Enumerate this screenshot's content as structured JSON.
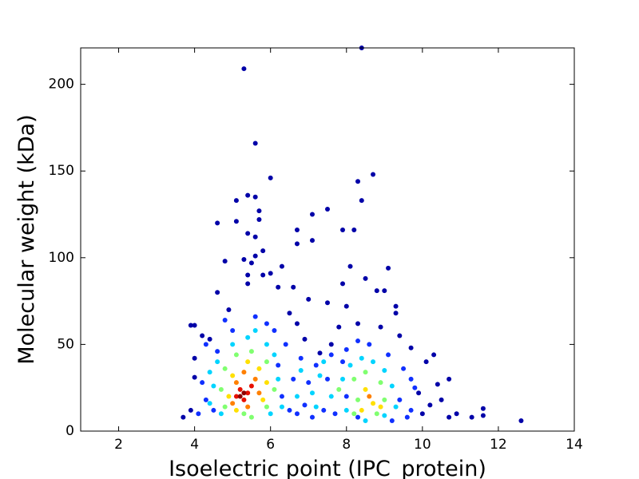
{
  "chart_data": {
    "type": "scatter",
    "x_label": "Isoelectric point (IPC_protein)",
    "y_label": "Molecular weight (kDa)",
    "xlim": [
      1,
      14
    ],
    "xticks": [
      2,
      4,
      6,
      8,
      10,
      12,
      14
    ],
    "ylim": [
      0,
      221
    ],
    "yticks": [
      0,
      50,
      100,
      150,
      200
    ],
    "series": [
      {
        "color": "#0000a8",
        "x": [
          5.3,
          8.4,
          5.6,
          6.0,
          8.7,
          8.3,
          5.4,
          5.6,
          5.1,
          8.4,
          5.7,
          7.5,
          7.1,
          5.1,
          4.6,
          5.7,
          6.7,
          7.9,
          8.2,
          5.4,
          7.1,
          5.6,
          6.7,
          5.8,
          5.6,
          5.3,
          5.5,
          4.8,
          6.3,
          8.1,
          9.1,
          5.4,
          5.8,
          6.0,
          6.2,
          6.6,
          5.4,
          8.5,
          7.9,
          4.6,
          8.8,
          9.0,
          7.0,
          7.5,
          9.3,
          8.0,
          6.5,
          9.3,
          4.9,
          3.9,
          4.0,
          6.7,
          7.8,
          10.3,
          10.1,
          9.7,
          10.4,
          10.7,
          10.9,
          11.3,
          11.6,
          11.6,
          12.6,
          10.7,
          3.7,
          3.9,
          4.0,
          4.0,
          4.2,
          9.4,
          8.9,
          8.3,
          4.4,
          6.9,
          7.3,
          7.6,
          10.5,
          10.2,
          9.9,
          10.0
        ],
        "y": [
          209,
          221,
          166,
          146,
          148,
          144,
          136,
          135,
          133,
          133,
          127,
          128,
          125,
          121,
          120,
          122,
          116,
          116,
          116,
          114,
          110,
          112,
          108,
          104,
          101,
          99,
          97,
          98,
          95,
          95,
          94,
          90,
          90,
          91,
          83,
          83,
          85,
          88,
          85,
          80,
          81,
          81,
          76,
          74,
          72,
          72,
          68,
          68,
          70,
          61,
          61,
          62,
          60,
          44,
          40,
          48,
          27,
          30,
          10,
          8,
          9,
          13,
          6,
          8,
          8,
          12,
          31,
          42,
          55,
          55,
          60,
          62,
          53,
          53,
          45,
          50,
          18,
          15,
          22,
          10
        ]
      },
      {
        "color": "#1030ff",
        "x": [
          4.3,
          4.6,
          6.1,
          6.4,
          6.8,
          7.2,
          7.6,
          7.9,
          8.0,
          8.3,
          8.6,
          9.1,
          9.5,
          9.7,
          9.8,
          9.4,
          9.7,
          6.7,
          7.1,
          7.4,
          6.9,
          4.2,
          4.3,
          4.1,
          6.3,
          6.2,
          5.0,
          5.6,
          5.9,
          4.8,
          7.5,
          7.0,
          8.0,
          7.7,
          8.3,
          9.2,
          9.6,
          4.5,
          6.5,
          6.6
        ],
        "y": [
          50,
          46,
          58,
          50,
          42,
          38,
          44,
          40,
          47,
          52,
          50,
          44,
          36,
          30,
          25,
          18,
          12,
          10,
          8,
          12,
          15,
          28,
          18,
          10,
          20,
          38,
          58,
          66,
          62,
          64,
          30,
          28,
          20,
          10,
          8,
          6,
          8,
          12,
          12,
          30
        ]
      },
      {
        "color": "#00d4ff",
        "x": [
          4.6,
          4.4,
          4.5,
          4.4,
          4.7,
          5.0,
          5.4,
          5.9,
          6.1,
          6.2,
          6.3,
          6.0,
          6.8,
          7.1,
          7.3,
          7.6,
          7.9,
          8.1,
          8.4,
          8.7,
          9.0,
          9.2,
          9.3,
          8.5,
          8.0,
          7.2,
          6.7,
          7.4,
          9.0,
          5.6
        ],
        "y": [
          40,
          34,
          26,
          16,
          10,
          50,
          54,
          50,
          44,
          30,
          14,
          10,
          35,
          22,
          32,
          20,
          30,
          38,
          42,
          40,
          35,
          26,
          14,
          6,
          12,
          14,
          20,
          40,
          9,
          58
        ]
      },
      {
        "color": "#80ff70",
        "x": [
          4.8,
          4.7,
          4.8,
          5.1,
          5.5,
          5.9,
          6.1,
          5.9,
          5.3,
          8.2,
          8.5,
          8.9,
          9.0,
          8.3,
          8.2,
          8.8,
          7.8,
          5.5
        ],
        "y": [
          36,
          24,
          14,
          44,
          46,
          40,
          24,
          14,
          10,
          30,
          34,
          28,
          18,
          18,
          10,
          10,
          24,
          8
        ]
      },
      {
        "color": "#ffe000",
        "x": [
          5.0,
          4.9,
          5.1,
          5.7,
          5.9,
          5.8,
          5.4,
          8.5,
          8.7,
          8.4,
          8.9
        ],
        "y": [
          32,
          20,
          12,
          36,
          28,
          18,
          40,
          24,
          16,
          12,
          14
        ]
      },
      {
        "color": "#ff8000",
        "x": [
          5.1,
          5.0,
          5.6,
          5.7,
          5.4,
          5.3,
          8.6
        ],
        "y": [
          28,
          16,
          30,
          22,
          14,
          34,
          20
        ]
      },
      {
        "color": "#e81000",
        "x": [
          5.2,
          5.3,
          5.5,
          5.4,
          5.1
        ],
        "y": [
          24,
          18,
          26,
          22,
          20
        ]
      },
      {
        "color": "#900000",
        "x": [
          5.3,
          5.2
        ],
        "y": [
          22,
          20
        ]
      }
    ]
  }
}
